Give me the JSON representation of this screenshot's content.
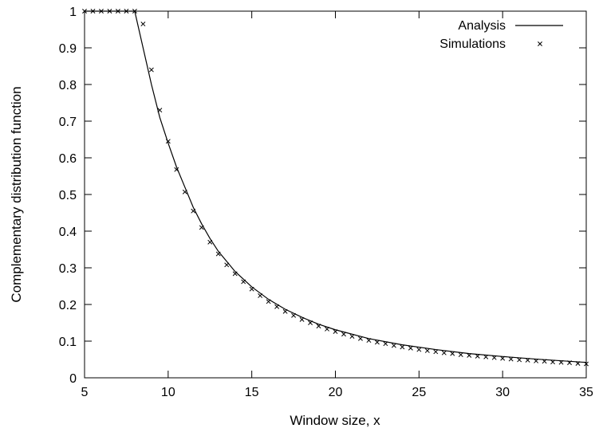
{
  "chart_data": {
    "type": "line",
    "title": "",
    "xlabel": "Window size, x",
    "ylabel": "Complementary distribution function",
    "xlim": [
      5,
      35
    ],
    "ylim": [
      0,
      1
    ],
    "xticks": [
      5,
      10,
      15,
      20,
      25,
      30,
      35
    ],
    "xtick_labels": [
      "5",
      "10",
      "15",
      "20",
      "25",
      "30",
      "35"
    ],
    "yticks": [
      0,
      0.1,
      0.2,
      0.3,
      0.4,
      0.5,
      0.6,
      0.7,
      0.8,
      0.9,
      1
    ],
    "ytick_labels": [
      "0",
      "0.1",
      "0.2",
      "0.3",
      "0.4",
      "0.5",
      "0.6",
      "0.7",
      "0.8",
      "0.9",
      "1"
    ],
    "grid": false,
    "legend_position": "top-right",
    "series": [
      {
        "name": "Analysis",
        "style": "line",
        "color": "#000000",
        "x": [
          5,
          8,
          8.5,
          9,
          9.5,
          10,
          10.5,
          11,
          11.5,
          12,
          12.5,
          13,
          14,
          15,
          16,
          17,
          18,
          19,
          20,
          22,
          24,
          26,
          28,
          30,
          32,
          34,
          35
        ],
        "y": [
          1,
          1,
          0.9,
          0.8,
          0.71,
          0.64,
          0.575,
          0.52,
          0.465,
          0.42,
          0.38,
          0.345,
          0.29,
          0.248,
          0.214,
          0.187,
          0.165,
          0.146,
          0.131,
          0.107,
          0.09,
          0.077,
          0.066,
          0.058,
          0.051,
          0.045,
          0.042
        ]
      },
      {
        "name": "Simulations",
        "style": "marker",
        "marker": "x",
        "color": "#000000",
        "x": [
          5,
          5.5,
          6,
          6.5,
          7,
          7.5,
          8,
          8.5,
          9,
          9.5,
          10,
          10.5,
          11,
          11.5,
          12,
          12.5,
          13,
          13.5,
          14,
          14.5,
          15,
          15.5,
          16,
          16.5,
          17,
          17.5,
          18,
          18.5,
          19,
          19.5,
          20,
          20.5,
          21,
          21.5,
          22,
          22.5,
          23,
          23.5,
          24,
          24.5,
          25,
          25.5,
          26,
          26.5,
          27,
          27.5,
          28,
          28.5,
          29,
          29.5,
          30,
          30.5,
          31,
          31.5,
          32,
          32.5,
          33,
          33.5,
          34,
          34.5,
          35
        ],
        "y": [
          1,
          1,
          1,
          1,
          1,
          1,
          1,
          0.965,
          0.84,
          0.73,
          0.645,
          0.568,
          0.507,
          0.455,
          0.41,
          0.37,
          0.338,
          0.308,
          0.284,
          0.262,
          0.242,
          0.224,
          0.208,
          0.194,
          0.181,
          0.17,
          0.159,
          0.15,
          0.141,
          0.133,
          0.126,
          0.119,
          0.113,
          0.107,
          0.102,
          0.097,
          0.093,
          0.088,
          0.084,
          0.081,
          0.077,
          0.074,
          0.071,
          0.068,
          0.066,
          0.063,
          0.061,
          0.059,
          0.057,
          0.055,
          0.053,
          0.051,
          0.049,
          0.048,
          0.046,
          0.045,
          0.043,
          0.042,
          0.041,
          0.039,
          0.038
        ]
      }
    ]
  }
}
